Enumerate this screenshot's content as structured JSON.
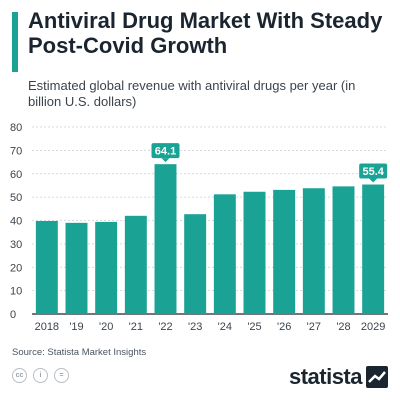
{
  "header": {
    "title": "Antiviral Drug Market With Steady Post-Covid Growth",
    "subtitle": "Estimated global revenue with antiviral drugs per year (in billion U.S. dollars)"
  },
  "chart_data": {
    "type": "bar",
    "categories": [
      "2018",
      "'19",
      "'20",
      "'21",
      "'22",
      "'23",
      "'24",
      "'25",
      "'26",
      "'27",
      "'28",
      "2029"
    ],
    "values": [
      39.8,
      39.0,
      39.4,
      42.0,
      64.1,
      42.7,
      51.2,
      52.3,
      53.1,
      53.8,
      54.6,
      55.4
    ],
    "annotated_values": [
      {
        "category": "'22",
        "label": "64.1"
      },
      {
        "category": "2029",
        "label": "55.4"
      }
    ],
    "ylim": [
      0,
      80
    ],
    "yticks": [
      0,
      10,
      20,
      30,
      40,
      50,
      60,
      70,
      80
    ],
    "grid": true,
    "color": "#1aa394",
    "xlabel": "",
    "ylabel": ""
  },
  "footer": {
    "source": "Source: Statista Market Insights",
    "logo": "statista",
    "icons": [
      "cc-icon",
      "attribution-icon",
      "no-derivatives-icon"
    ]
  }
}
